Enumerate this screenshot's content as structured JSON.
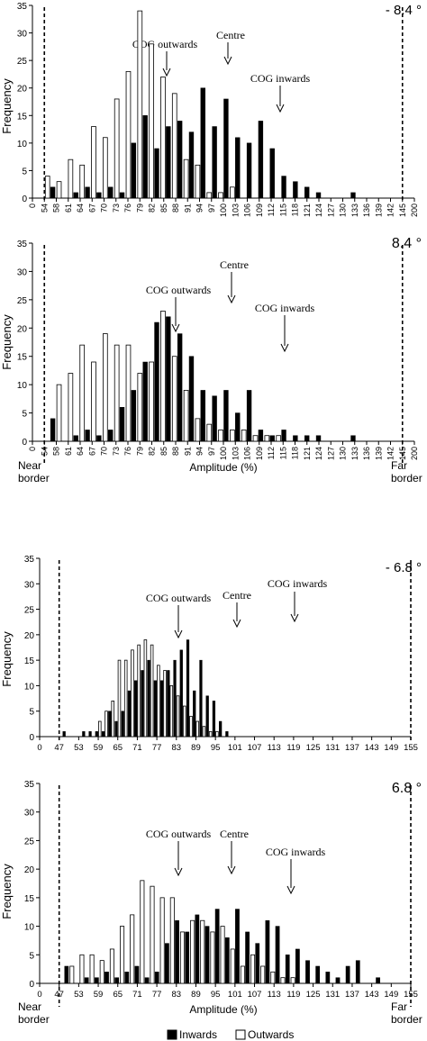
{
  "colors": {
    "inwards": "#000000",
    "outwards": "#ffffff",
    "axis": "#000000"
  },
  "legend": {
    "inwards": "Inwards",
    "outwards": "Outwards"
  },
  "chart_data": [
    {
      "type": "bar",
      "title": "- 8.4 °",
      "xlabel": "",
      "ylabel": "Frequency",
      "ylim": [
        0,
        35
      ],
      "yticks": [
        0,
        5,
        10,
        15,
        20,
        25,
        30,
        35
      ],
      "xticks": [
        0,
        54,
        58,
        61,
        64,
        67,
        70,
        73,
        76,
        79,
        82,
        85,
        88,
        91,
        94,
        97,
        100,
        103,
        106,
        109,
        112,
        115,
        118,
        121,
        124,
        127,
        130,
        133,
        136,
        139,
        142,
        145,
        200
      ],
      "grid": false,
      "annotations": [
        "COG outwards",
        "Centre",
        "COG inwards"
      ],
      "series": [
        {
          "name": "Inwards",
          "values": [
            2,
            0,
            1,
            2,
            1,
            2,
            1,
            10,
            15,
            9,
            13,
            14,
            12,
            20,
            13,
            18,
            11,
            10,
            14,
            9,
            4,
            3,
            2,
            1,
            0,
            0,
            1,
            0,
            0,
            0,
            0
          ]
        },
        {
          "name": "Outwards",
          "values": [
            4,
            3,
            7,
            6,
            13,
            11,
            18,
            23,
            34,
            28,
            22,
            19,
            7,
            6,
            1,
            1,
            2,
            0,
            0,
            0,
            0,
            0,
            0,
            0,
            0,
            0,
            0,
            0,
            0,
            0,
            0
          ]
        }
      ]
    },
    {
      "type": "bar",
      "title": "8.4 °",
      "xlabel": "Amplitude (%)",
      "ylabel": "Frequency",
      "ylim": [
        0,
        35
      ],
      "yticks": [
        0,
        5,
        10,
        15,
        20,
        25,
        30,
        35
      ],
      "xticks": [
        0,
        54,
        58,
        61,
        64,
        67,
        70,
        73,
        76,
        79,
        82,
        85,
        88,
        91,
        94,
        97,
        100,
        103,
        106,
        109,
        112,
        115,
        118,
        121,
        124,
        127,
        130,
        133,
        136,
        139,
        142,
        145,
        200
      ],
      "grid": false,
      "annotations": [
        "COG outwards",
        "Centre",
        "COG inwards",
        "Near border",
        "Far border"
      ],
      "series": [
        {
          "name": "Inwards",
          "values": [
            4,
            0,
            1,
            2,
            1,
            2,
            6,
            9,
            14,
            21,
            22,
            19,
            15,
            9,
            8,
            9,
            5,
            9,
            2,
            1,
            2,
            1,
            1,
            1,
            0,
            0,
            1,
            0,
            0,
            0,
            0
          ]
        },
        {
          "name": "Outwards",
          "values": [
            0,
            10,
            12,
            17,
            14,
            19,
            17,
            17,
            12,
            14,
            23,
            15,
            9,
            4,
            3,
            2,
            2,
            2,
            1,
            1,
            1,
            0,
            0,
            0,
            0,
            0,
            0,
            0,
            0,
            0,
            0
          ]
        }
      ]
    },
    {
      "type": "bar",
      "title": "- 6.8 °",
      "xlabel": "",
      "ylabel": "Frequency",
      "ylim": [
        0,
        35
      ],
      "yticks": [
        0,
        5,
        10,
        15,
        20,
        25,
        30,
        35
      ],
      "xticks": [
        0,
        47,
        53,
        59,
        65,
        71,
        77,
        83,
        89,
        95,
        101,
        107,
        113,
        119,
        125,
        131,
        137,
        143,
        149,
        155
      ],
      "grid": false,
      "annotations": [
        "COG outwards",
        "Centre",
        "COG inwards"
      ],
      "series": [
        {
          "name": "Inwards",
          "values": [
            1,
            0,
            0,
            1,
            1,
            1,
            1,
            5,
            3,
            5,
            9,
            11,
            13,
            15,
            11,
            11,
            13,
            15,
            17,
            19,
            9,
            15,
            8,
            7,
            3,
            1,
            0,
            0,
            0,
            0,
            0,
            0,
            0,
            0,
            0,
            0,
            0,
            0,
            0,
            0,
            0,
            0,
            0,
            0,
            0,
            0,
            0,
            0,
            0,
            0,
            0,
            0,
            0,
            0
          ]
        },
        {
          "name": "Outwards",
          "values": [
            0,
            0,
            0,
            0,
            0,
            0,
            3,
            5,
            7,
            15,
            15,
            17,
            18,
            19,
            18,
            14,
            13,
            10,
            8,
            6,
            4,
            3,
            2,
            1,
            1,
            0,
            0,
            0,
            0,
            0,
            0,
            0,
            0,
            0,
            0,
            0,
            0,
            0,
            0,
            0,
            0,
            0,
            0,
            0,
            0,
            0,
            0,
            0,
            0,
            0,
            0,
            0,
            0,
            0
          ]
        }
      ]
    },
    {
      "type": "bar",
      "title": "6.8 °",
      "xlabel": "Amplitude (%)",
      "ylabel": "Frequency",
      "ylim": [
        0,
        35
      ],
      "yticks": [
        0,
        5,
        10,
        15,
        20,
        25,
        30,
        35
      ],
      "xticks": [
        0,
        47,
        53,
        59,
        65,
        71,
        77,
        83,
        89,
        95,
        101,
        107,
        113,
        119,
        125,
        131,
        137,
        143,
        149,
        155
      ],
      "grid": false,
      "annotations": [
        "COG outwards",
        "Centre",
        "COG inwards",
        "Near border",
        "Far border"
      ],
      "series": [
        {
          "name": "Inwards",
          "values": [
            3,
            0,
            1,
            1,
            2,
            1,
            2,
            3,
            1,
            2,
            7,
            11,
            9,
            12,
            10,
            13,
            8,
            13,
            9,
            7,
            11,
            10,
            5,
            6,
            4,
            3,
            2,
            1,
            3,
            4,
            0,
            1,
            0,
            0,
            0
          ]
        },
        {
          "name": "Outwards",
          "values": [
            0,
            3,
            5,
            5,
            4,
            6,
            10,
            12,
            18,
            17,
            15,
            15,
            9,
            11,
            11,
            9,
            10,
            6,
            3,
            5,
            3,
            2,
            1,
            1,
            0,
            0,
            0,
            0,
            0,
            0,
            0,
            0,
            0,
            0,
            0
          ]
        }
      ]
    }
  ]
}
